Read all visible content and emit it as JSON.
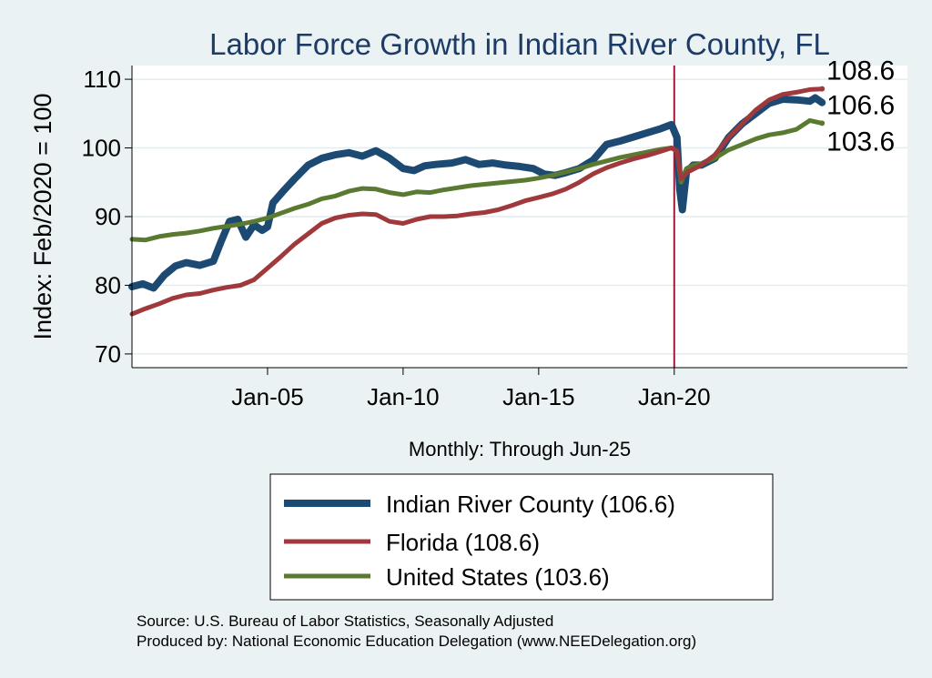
{
  "chart_data": {
    "type": "line",
    "title": "Labor Force Growth in Indian River  County, FL",
    "ylabel": "Index: Feb/2020 = 100",
    "xlabel": "Monthly: Through Jun-25",
    "ylim": [
      68,
      112
    ],
    "yticks": [
      70,
      80,
      90,
      100,
      110
    ],
    "xlim": [
      2000.0,
      2028.6
    ],
    "xticks": [
      {
        "value": 2005,
        "label": "Jan-05"
      },
      {
        "value": 2010,
        "label": "Jan-10"
      },
      {
        "value": 2015,
        "label": "Jan-15"
      },
      {
        "value": 2020,
        "label": "Jan-20"
      }
    ],
    "reference_line": {
      "x": 2020.0,
      "color": "#a01c3a"
    },
    "grid": true,
    "legend": "bottom",
    "series": [
      {
        "name": "Indian River  County (106.6)",
        "end_label": "106.6",
        "color": "#1c4a73",
        "width": 8,
        "points": [
          [
            2000.0,
            79.8
          ],
          [
            2000.4,
            80.2
          ],
          [
            2000.8,
            79.6
          ],
          [
            2001.2,
            81.5
          ],
          [
            2001.6,
            82.8
          ],
          [
            2002.0,
            83.3
          ],
          [
            2002.5,
            82.9
          ],
          [
            2003.0,
            83.5
          ],
          [
            2003.3,
            86.5
          ],
          [
            2003.6,
            89.3
          ],
          [
            2003.9,
            89.6
          ],
          [
            2004.2,
            87.0
          ],
          [
            2004.5,
            88.8
          ],
          [
            2004.8,
            88.0
          ],
          [
            2005.0,
            88.5
          ],
          [
            2005.2,
            92.0
          ],
          [
            2005.6,
            93.8
          ],
          [
            2006.0,
            95.5
          ],
          [
            2006.5,
            97.5
          ],
          [
            2007.0,
            98.5
          ],
          [
            2007.5,
            99.0
          ],
          [
            2008.0,
            99.3
          ],
          [
            2008.5,
            98.8
          ],
          [
            2009.0,
            99.6
          ],
          [
            2009.5,
            98.5
          ],
          [
            2010.0,
            97.0
          ],
          [
            2010.4,
            96.7
          ],
          [
            2010.8,
            97.4
          ],
          [
            2011.2,
            97.6
          ],
          [
            2011.8,
            97.8
          ],
          [
            2012.3,
            98.3
          ],
          [
            2012.8,
            97.6
          ],
          [
            2013.3,
            97.8
          ],
          [
            2013.8,
            97.5
          ],
          [
            2014.3,
            97.3
          ],
          [
            2014.8,
            97.0
          ],
          [
            2015.2,
            96.2
          ],
          [
            2015.6,
            96.0
          ],
          [
            2016.0,
            96.4
          ],
          [
            2016.5,
            97.0
          ],
          [
            2017.0,
            98.2
          ],
          [
            2017.5,
            100.5
          ],
          [
            2018.0,
            101.0
          ],
          [
            2018.5,
            101.6
          ],
          [
            2019.0,
            102.2
          ],
          [
            2019.5,
            102.8
          ],
          [
            2019.9,
            103.4
          ],
          [
            2020.1,
            101.5
          ],
          [
            2020.2,
            94.0
          ],
          [
            2020.3,
            91.0
          ],
          [
            2020.45,
            96.5
          ],
          [
            2020.7,
            97.5
          ],
          [
            2021.0,
            97.5
          ],
          [
            2021.5,
            98.5
          ],
          [
            2022.0,
            101.5
          ],
          [
            2022.5,
            103.5
          ],
          [
            2023.0,
            105.0
          ],
          [
            2023.5,
            106.5
          ],
          [
            2024.0,
            107.1
          ],
          [
            2024.5,
            107.0
          ],
          [
            2025.0,
            106.8
          ],
          [
            2025.2,
            107.3
          ],
          [
            2025.45,
            106.6
          ]
        ]
      },
      {
        "name": "Florida (108.6)",
        "end_label": "108.6",
        "color": "#a0393c",
        "width": 5,
        "points": [
          [
            2000.0,
            75.8
          ],
          [
            2000.5,
            76.6
          ],
          [
            2001.0,
            77.3
          ],
          [
            2001.5,
            78.1
          ],
          [
            2002.0,
            78.6
          ],
          [
            2002.5,
            78.8
          ],
          [
            2003.0,
            79.3
          ],
          [
            2003.5,
            79.7
          ],
          [
            2004.0,
            80.0
          ],
          [
            2004.5,
            80.8
          ],
          [
            2005.0,
            82.5
          ],
          [
            2005.5,
            84.2
          ],
          [
            2006.0,
            86.0
          ],
          [
            2006.5,
            87.5
          ],
          [
            2007.0,
            89.0
          ],
          [
            2007.5,
            89.8
          ],
          [
            2008.0,
            90.2
          ],
          [
            2008.5,
            90.4
          ],
          [
            2009.0,
            90.3
          ],
          [
            2009.5,
            89.3
          ],
          [
            2010.0,
            89.0
          ],
          [
            2010.5,
            89.6
          ],
          [
            2011.0,
            90.0
          ],
          [
            2011.5,
            90.0
          ],
          [
            2012.0,
            90.1
          ],
          [
            2012.5,
            90.4
          ],
          [
            2013.0,
            90.6
          ],
          [
            2013.5,
            91.0
          ],
          [
            2014.0,
            91.6
          ],
          [
            2014.5,
            92.3
          ],
          [
            2015.0,
            92.8
          ],
          [
            2015.5,
            93.3
          ],
          [
            2016.0,
            94.0
          ],
          [
            2016.5,
            95.0
          ],
          [
            2017.0,
            96.2
          ],
          [
            2017.5,
            97.1
          ],
          [
            2018.0,
            97.8
          ],
          [
            2018.5,
            98.4
          ],
          [
            2019.0,
            98.9
          ],
          [
            2019.5,
            99.5
          ],
          [
            2019.9,
            100.0
          ],
          [
            2020.1,
            99.6
          ],
          [
            2020.25,
            95.5
          ],
          [
            2020.5,
            96.5
          ],
          [
            2021.0,
            97.5
          ],
          [
            2021.5,
            99.0
          ],
          [
            2022.0,
            101.5
          ],
          [
            2022.5,
            103.5
          ],
          [
            2023.0,
            105.5
          ],
          [
            2023.5,
            107.0
          ],
          [
            2024.0,
            107.8
          ],
          [
            2024.5,
            108.1
          ],
          [
            2025.0,
            108.5
          ],
          [
            2025.45,
            108.6
          ]
        ]
      },
      {
        "name": "United States (103.6)",
        "end_label": "103.6",
        "color": "#5a7a32",
        "width": 5,
        "points": [
          [
            2000.0,
            86.7
          ],
          [
            2000.5,
            86.6
          ],
          [
            2001.0,
            87.1
          ],
          [
            2001.5,
            87.4
          ],
          [
            2002.0,
            87.6
          ],
          [
            2002.5,
            87.9
          ],
          [
            2003.0,
            88.3
          ],
          [
            2003.5,
            88.6
          ],
          [
            2004.0,
            88.9
          ],
          [
            2004.5,
            89.3
          ],
          [
            2005.0,
            89.8
          ],
          [
            2005.5,
            90.5
          ],
          [
            2006.0,
            91.2
          ],
          [
            2006.5,
            91.8
          ],
          [
            2007.0,
            92.6
          ],
          [
            2007.5,
            93.0
          ],
          [
            2008.0,
            93.7
          ],
          [
            2008.5,
            94.1
          ],
          [
            2009.0,
            94.0
          ],
          [
            2009.5,
            93.5
          ],
          [
            2010.0,
            93.2
          ],
          [
            2010.5,
            93.6
          ],
          [
            2011.0,
            93.5
          ],
          [
            2011.5,
            93.9
          ],
          [
            2012.0,
            94.2
          ],
          [
            2012.5,
            94.5
          ],
          [
            2013.0,
            94.7
          ],
          [
            2013.5,
            94.9
          ],
          [
            2014.0,
            95.1
          ],
          [
            2014.5,
            95.3
          ],
          [
            2015.0,
            95.6
          ],
          [
            2015.5,
            96.0
          ],
          [
            2016.0,
            96.5
          ],
          [
            2016.5,
            97.0
          ],
          [
            2017.0,
            97.6
          ],
          [
            2017.5,
            98.1
          ],
          [
            2018.0,
            98.6
          ],
          [
            2018.5,
            99.0
          ],
          [
            2019.0,
            99.4
          ],
          [
            2019.5,
            99.8
          ],
          [
            2019.9,
            100.0
          ],
          [
            2020.1,
            99.5
          ],
          [
            2020.25,
            95.0
          ],
          [
            2020.45,
            97.0
          ],
          [
            2020.7,
            97.5
          ],
          [
            2021.0,
            97.7
          ],
          [
            2021.5,
            98.5
          ],
          [
            2022.0,
            99.7
          ],
          [
            2022.5,
            100.5
          ],
          [
            2023.0,
            101.3
          ],
          [
            2023.5,
            101.9
          ],
          [
            2024.0,
            102.2
          ],
          [
            2024.5,
            102.7
          ],
          [
            2025.0,
            104.0
          ],
          [
            2025.45,
            103.6
          ]
        ]
      }
    ]
  },
  "notes": {
    "source": "Source: U.S. Bureau of Labor Statistics, Seasonally Adjusted",
    "produced_by": "Produced by: National Economic Education Delegation (www.NEEDelegation.org)"
  }
}
